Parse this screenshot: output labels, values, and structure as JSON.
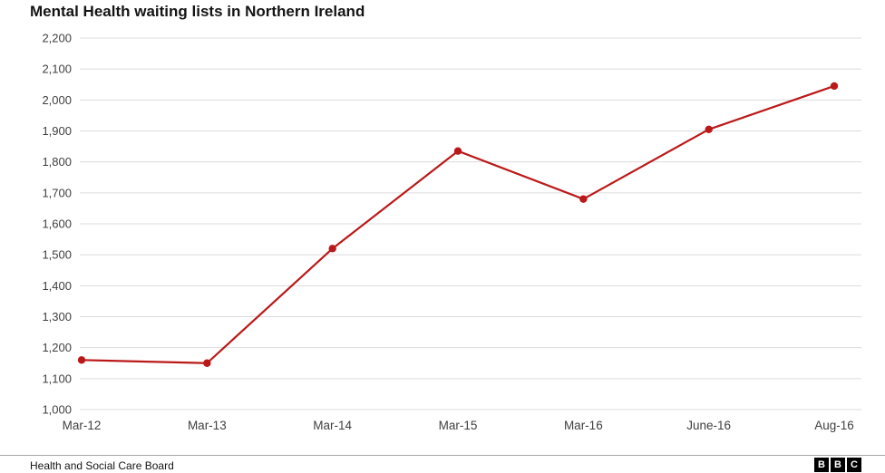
{
  "title": "Mental Health waiting lists in Northern Ireland",
  "source": "Health and Social Care Board",
  "logo": {
    "letters": [
      "B",
      "B",
      "C"
    ]
  },
  "chart_data": {
    "type": "line",
    "title": "Mental Health waiting lists in Northern Ireland",
    "categories": [
      "Mar-12",
      "Mar-13",
      "Mar-14",
      "Mar-15",
      "Mar-16",
      "June-16",
      "Aug-16"
    ],
    "values": [
      1160,
      1150,
      1520,
      1835,
      1680,
      1905,
      2045
    ],
    "xlabel": "",
    "ylabel": "",
    "ylim": [
      1000,
      2200
    ],
    "ytick_step": 100,
    "grid": true,
    "legend": "none",
    "line_color": "#bb1919",
    "grid_color": "#dcdcdc",
    "text_color": "#404040"
  }
}
